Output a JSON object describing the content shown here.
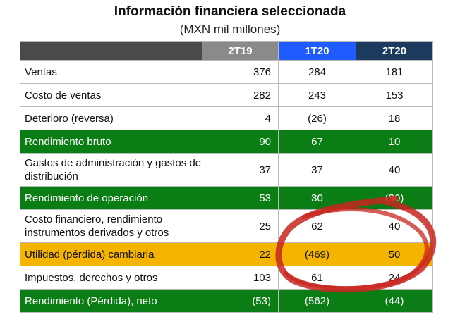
{
  "title": "Información financiera seleccionada",
  "subtitle": "(MXN mil millones)",
  "columns": [
    "2T19",
    "1T20",
    "2T20"
  ],
  "rows": [
    {
      "label": "Ventas",
      "values": [
        "376",
        "284",
        "181"
      ],
      "style": "row",
      "height": "h32"
    },
    {
      "label": "Costo de ventas",
      "values": [
        "282",
        "243",
        "153"
      ],
      "style": "row",
      "height": "h32"
    },
    {
      "label": "Deterioro (reversa)",
      "values": [
        "4",
        "(26)",
        "18"
      ],
      "style": "row",
      "height": "h32"
    },
    {
      "label": "Rendimiento bruto",
      "values": [
        "90",
        "67",
        "10"
      ],
      "style": "green",
      "height": "h32"
    },
    {
      "label": "Gastos de administración y gastos de distribución",
      "values": [
        "37",
        "37",
        "40"
      ],
      "style": "row",
      "height": "h46"
    },
    {
      "label": "Rendimiento de operación",
      "values": [
        "53",
        "30",
        "(30)"
      ],
      "style": "green",
      "height": "h32"
    },
    {
      "label": "Costo financiero, rendimiento instrumentos derivados y otros",
      "values": [
        "25",
        "62",
        "40"
      ],
      "style": "row",
      "height": "h46"
    },
    {
      "label": "Utilidad (pérdida) cambiaria",
      "values": [
        "22",
        "(469)",
        "50"
      ],
      "style": "yellow",
      "height": "h32"
    },
    {
      "label": "Impuestos, derechos y otros",
      "values": [
        "103",
        "61",
        "24"
      ],
      "style": "row",
      "height": "h32"
    },
    {
      "label": "Rendimiento (Pérdida), neto",
      "values": [
        "(53)",
        "(562)",
        "(44)"
      ],
      "style": "green",
      "height": "h32"
    }
  ],
  "colors": {
    "header_blank": "#4a4a4a",
    "header_2T19": "#8a8a8a",
    "header_1T20": "#1f5bff",
    "header_2T20": "#1c3a5e",
    "highlight_green": "#0a7d14",
    "highlight_yellow": "#f5b400",
    "annotation_red": "#c8261e"
  }
}
